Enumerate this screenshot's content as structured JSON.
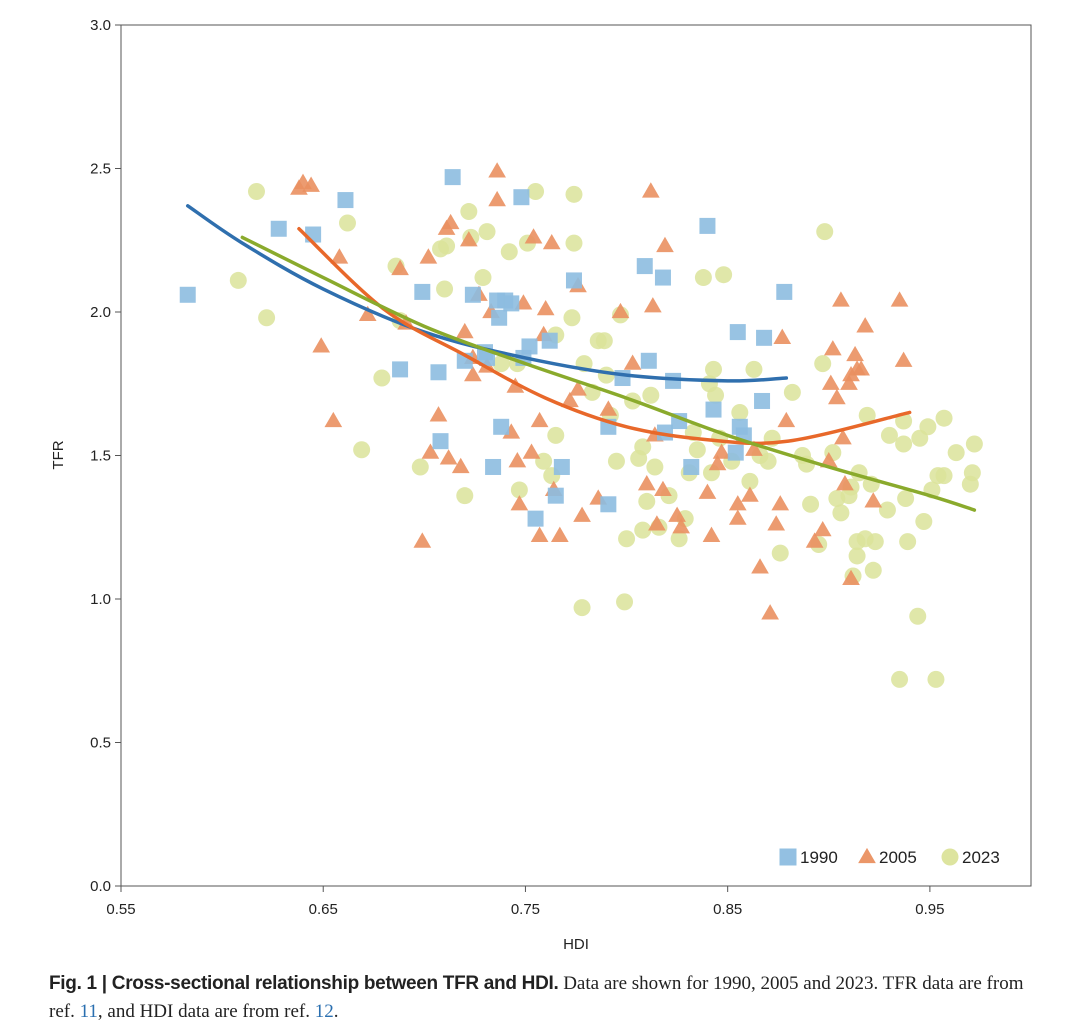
{
  "chart_data": {
    "type": "scatter",
    "title": "",
    "xlabel": "HDI",
    "ylabel": "TFR",
    "xlim": [
      0.55,
      1.0
    ],
    "ylim": [
      0,
      3.0
    ],
    "x_ticks": [
      "0.55",
      "0.65",
      "0.75",
      "0.85",
      "0.95"
    ],
    "y_ticks": [
      "0.0",
      "0.5",
      "1.0",
      "1.5",
      "2.0",
      "2.5",
      "3.0"
    ],
    "legend_position": "bottom-right",
    "grid": false,
    "series": [
      {
        "name": "1990",
        "marker": "square",
        "color": "#8dbde0",
        "fit_color": "#2f6fae",
        "fit": [
          [
            0.583,
            2.37
          ],
          [
            0.61,
            2.24
          ],
          [
            0.65,
            2.08
          ],
          [
            0.7,
            1.93
          ],
          [
            0.75,
            1.84
          ],
          [
            0.8,
            1.78
          ],
          [
            0.85,
            1.76
          ],
          [
            0.879,
            1.77
          ]
        ],
        "points": [
          [
            0.583,
            2.06
          ],
          [
            0.628,
            2.29
          ],
          [
            0.645,
            2.27
          ],
          [
            0.661,
            2.39
          ],
          [
            0.688,
            1.8
          ],
          [
            0.699,
            2.07
          ],
          [
            0.707,
            1.79
          ],
          [
            0.708,
            1.55
          ],
          [
            0.714,
            2.47
          ],
          [
            0.72,
            1.83
          ],
          [
            0.724,
            2.06
          ],
          [
            0.73,
            1.86
          ],
          [
            0.731,
            1.84
          ],
          [
            0.734,
            1.46
          ],
          [
            0.736,
            2.04
          ],
          [
            0.737,
            1.98
          ],
          [
            0.738,
            1.6
          ],
          [
            0.74,
            2.04
          ],
          [
            0.743,
            2.03
          ],
          [
            0.748,
            2.4
          ],
          [
            0.749,
            1.84
          ],
          [
            0.752,
            1.88
          ],
          [
            0.755,
            1.28
          ],
          [
            0.762,
            1.9
          ],
          [
            0.765,
            1.36
          ],
          [
            0.768,
            1.46
          ],
          [
            0.774,
            2.11
          ],
          [
            0.791,
            1.6
          ],
          [
            0.791,
            1.33
          ],
          [
            0.798,
            1.77
          ],
          [
            0.809,
            2.16
          ],
          [
            0.811,
            1.83
          ],
          [
            0.818,
            2.12
          ],
          [
            0.819,
            1.58
          ],
          [
            0.823,
            1.76
          ],
          [
            0.826,
            1.62
          ],
          [
            0.832,
            1.46
          ],
          [
            0.84,
            2.3
          ],
          [
            0.843,
            1.66
          ],
          [
            0.854,
            1.51
          ],
          [
            0.855,
            1.93
          ],
          [
            0.856,
            1.6
          ],
          [
            0.858,
            1.57
          ],
          [
            0.867,
            1.69
          ],
          [
            0.868,
            1.91
          ],
          [
            0.878,
            2.07
          ]
        ]
      },
      {
        "name": "2005",
        "marker": "triangle",
        "color": "#ea9060",
        "fit_color": "#e8682a",
        "fit": [
          [
            0.638,
            2.29
          ],
          [
            0.68,
            2.01
          ],
          [
            0.72,
            1.85
          ],
          [
            0.76,
            1.7
          ],
          [
            0.8,
            1.6
          ],
          [
            0.84,
            1.555
          ],
          [
            0.88,
            1.55
          ],
          [
            0.94,
            1.65
          ]
        ],
        "points": [
          [
            0.638,
            2.43
          ],
          [
            0.64,
            2.45
          ],
          [
            0.644,
            2.44
          ],
          [
            0.658,
            2.19
          ],
          [
            0.649,
            1.88
          ],
          [
            0.655,
            1.62
          ],
          [
            0.672,
            1.99
          ],
          [
            0.688,
            2.15
          ],
          [
            0.691,
            1.96
          ],
          [
            0.699,
            1.2
          ],
          [
            0.702,
            2.19
          ],
          [
            0.703,
            1.51
          ],
          [
            0.707,
            1.64
          ],
          [
            0.711,
            2.29
          ],
          [
            0.712,
            1.49
          ],
          [
            0.713,
            2.31
          ],
          [
            0.718,
            1.46
          ],
          [
            0.72,
            1.93
          ],
          [
            0.722,
            2.25
          ],
          [
            0.724,
            1.84
          ],
          [
            0.724,
            1.78
          ],
          [
            0.727,
            2.06
          ],
          [
            0.731,
            1.81
          ],
          [
            0.733,
            2.0
          ],
          [
            0.736,
            2.39
          ],
          [
            0.736,
            2.49
          ],
          [
            0.743,
            1.58
          ],
          [
            0.745,
            1.74
          ],
          [
            0.746,
            1.48
          ],
          [
            0.747,
            1.33
          ],
          [
            0.749,
            2.03
          ],
          [
            0.753,
            1.51
          ],
          [
            0.754,
            2.26
          ],
          [
            0.757,
            1.62
          ],
          [
            0.757,
            1.22
          ],
          [
            0.759,
            1.92
          ],
          [
            0.76,
            2.01
          ],
          [
            0.763,
            2.24
          ],
          [
            0.764,
            1.38
          ],
          [
            0.767,
            1.22
          ],
          [
            0.772,
            1.69
          ],
          [
            0.776,
            2.09
          ],
          [
            0.776,
            1.73
          ],
          [
            0.778,
            1.29
          ],
          [
            0.786,
            1.35
          ],
          [
            0.791,
            1.66
          ],
          [
            0.797,
            2.0
          ],
          [
            0.803,
            1.82
          ],
          [
            0.81,
            1.4
          ],
          [
            0.812,
            2.42
          ],
          [
            0.813,
            2.02
          ],
          [
            0.814,
            1.57
          ],
          [
            0.815,
            1.26
          ],
          [
            0.818,
            1.38
          ],
          [
            0.819,
            2.23
          ],
          [
            0.825,
            1.29
          ],
          [
            0.827,
            1.25
          ],
          [
            0.84,
            1.37
          ],
          [
            0.842,
            1.22
          ],
          [
            0.845,
            1.47
          ],
          [
            0.847,
            1.51
          ],
          [
            0.855,
            1.33
          ],
          [
            0.855,
            1.28
          ],
          [
            0.861,
            1.36
          ],
          [
            0.863,
            1.52
          ],
          [
            0.866,
            1.11
          ],
          [
            0.871,
            0.95
          ],
          [
            0.874,
            1.26
          ],
          [
            0.876,
            1.33
          ],
          [
            0.877,
            1.91
          ],
          [
            0.879,
            1.62
          ],
          [
            0.893,
            1.2
          ],
          [
            0.897,
            1.24
          ],
          [
            0.9,
            1.48
          ],
          [
            0.901,
            1.75
          ],
          [
            0.902,
            1.87
          ],
          [
            0.904,
            1.7
          ],
          [
            0.906,
            2.04
          ],
          [
            0.907,
            1.56
          ],
          [
            0.908,
            1.4
          ],
          [
            0.91,
            1.75
          ],
          [
            0.911,
            1.07
          ],
          [
            0.911,
            1.78
          ],
          [
            0.913,
            1.85
          ],
          [
            0.914,
            1.8
          ],
          [
            0.916,
            1.8
          ],
          [
            0.918,
            1.95
          ],
          [
            0.922,
            1.34
          ],
          [
            0.935,
            2.04
          ],
          [
            0.937,
            1.83
          ]
        ]
      },
      {
        "name": "2023",
        "marker": "circle",
        "color": "#dbe39a",
        "fit_color": "#8aaa2c",
        "fit": [
          [
            0.61,
            2.26
          ],
          [
            0.65,
            2.12
          ],
          [
            0.7,
            1.95
          ],
          [
            0.75,
            1.82
          ],
          [
            0.8,
            1.7
          ],
          [
            0.85,
            1.57
          ],
          [
            0.9,
            1.46
          ],
          [
            0.95,
            1.36
          ],
          [
            0.972,
            1.31
          ]
        ],
        "points": [
          [
            0.608,
            2.11
          ],
          [
            0.617,
            2.42
          ],
          [
            0.622,
            1.98
          ],
          [
            0.662,
            2.31
          ],
          [
            0.669,
            1.52
          ],
          [
            0.679,
            1.77
          ],
          [
            0.686,
            2.16
          ],
          [
            0.688,
            1.97
          ],
          [
            0.698,
            1.46
          ],
          [
            0.708,
            2.22
          ],
          [
            0.71,
            2.08
          ],
          [
            0.711,
            2.23
          ],
          [
            0.72,
            1.36
          ],
          [
            0.722,
            2.35
          ],
          [
            0.723,
            2.26
          ],
          [
            0.729,
            2.12
          ],
          [
            0.731,
            2.28
          ],
          [
            0.738,
            1.82
          ],
          [
            0.742,
            2.21
          ],
          [
            0.746,
            1.82
          ],
          [
            0.747,
            1.38
          ],
          [
            0.751,
            2.24
          ],
          [
            0.755,
            2.42
          ],
          [
            0.759,
            1.48
          ],
          [
            0.763,
            1.43
          ],
          [
            0.765,
            1.92
          ],
          [
            0.765,
            1.57
          ],
          [
            0.773,
            1.98
          ],
          [
            0.774,
            2.41
          ],
          [
            0.774,
            2.24
          ],
          [
            0.778,
            0.97
          ],
          [
            0.779,
            1.82
          ],
          [
            0.783,
            1.72
          ],
          [
            0.786,
            1.9
          ],
          [
            0.789,
            1.9
          ],
          [
            0.79,
            1.78
          ],
          [
            0.792,
            1.64
          ],
          [
            0.795,
            1.48
          ],
          [
            0.797,
            1.99
          ],
          [
            0.799,
            0.99
          ],
          [
            0.8,
            1.21
          ],
          [
            0.803,
            1.69
          ],
          [
            0.806,
            1.49
          ],
          [
            0.808,
            1.53
          ],
          [
            0.808,
            1.24
          ],
          [
            0.81,
            1.34
          ],
          [
            0.812,
            1.71
          ],
          [
            0.814,
            1.46
          ],
          [
            0.816,
            1.25
          ],
          [
            0.821,
            1.36
          ],
          [
            0.826,
            1.21
          ],
          [
            0.829,
            1.28
          ],
          [
            0.831,
            1.44
          ],
          [
            0.833,
            1.58
          ],
          [
            0.835,
            1.52
          ],
          [
            0.838,
            2.12
          ],
          [
            0.841,
            1.75
          ],
          [
            0.842,
            1.44
          ],
          [
            0.843,
            1.8
          ],
          [
            0.844,
            1.71
          ],
          [
            0.846,
            1.56
          ],
          [
            0.848,
            2.13
          ],
          [
            0.852,
            1.48
          ],
          [
            0.856,
            1.65
          ],
          [
            0.861,
            1.41
          ],
          [
            0.863,
            1.8
          ],
          [
            0.866,
            1.5
          ],
          [
            0.87,
            1.48
          ],
          [
            0.872,
            1.56
          ],
          [
            0.876,
            1.16
          ],
          [
            0.882,
            1.72
          ],
          [
            0.887,
            1.5
          ],
          [
            0.889,
            1.47
          ],
          [
            0.891,
            1.33
          ],
          [
            0.895,
            1.19
          ],
          [
            0.897,
            1.82
          ],
          [
            0.898,
            2.28
          ],
          [
            0.902,
            1.51
          ],
          [
            0.904,
            1.35
          ],
          [
            0.906,
            1.3
          ],
          [
            0.91,
            1.36
          ],
          [
            0.911,
            1.39
          ],
          [
            0.912,
            1.08
          ],
          [
            0.914,
            1.2
          ],
          [
            0.914,
            1.15
          ],
          [
            0.915,
            1.44
          ],
          [
            0.918,
            1.21
          ],
          [
            0.919,
            1.64
          ],
          [
            0.921,
            1.4
          ],
          [
            0.922,
            1.1
          ],
          [
            0.923,
            1.2
          ],
          [
            0.929,
            1.31
          ],
          [
            0.93,
            1.57
          ],
          [
            0.935,
            0.72
          ],
          [
            0.937,
            1.62
          ],
          [
            0.937,
            1.54
          ],
          [
            0.938,
            1.35
          ],
          [
            0.939,
            1.2
          ],
          [
            0.944,
            0.94
          ],
          [
            0.945,
            1.56
          ],
          [
            0.947,
            1.27
          ],
          [
            0.949,
            1.6
          ],
          [
            0.951,
            1.38
          ],
          [
            0.953,
            0.72
          ],
          [
            0.954,
            1.43
          ],
          [
            0.957,
            1.43
          ],
          [
            0.957,
            1.63
          ],
          [
            0.963,
            1.51
          ],
          [
            0.97,
            1.4
          ],
          [
            0.971,
            1.44
          ],
          [
            0.972,
            1.54
          ]
        ]
      }
    ]
  },
  "caption": {
    "label": "Fig. 1 | Cross-sectional relationship between TFR and HDI.",
    "text_1": " Data are shown for 1990, 2005 and 2023. TFR data are from ref. ",
    "ref_1": "11",
    "text_2": ", and HDI data are from ref. ",
    "ref_2": "12",
    "text_3": "."
  }
}
